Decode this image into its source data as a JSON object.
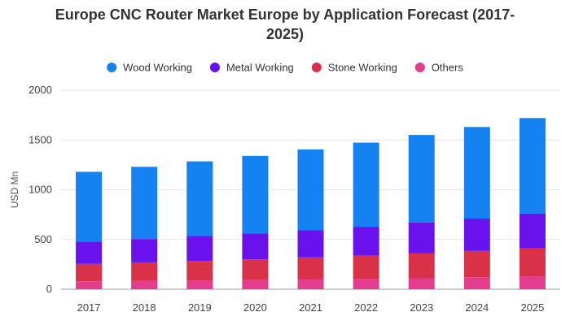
{
  "chart_data": {
    "type": "bar",
    "stacked": true,
    "title": "Europe CNC Router Market Europe by Application Forecast (2017-2025)",
    "xlabel": "",
    "ylabel": "USD Mn",
    "ylim": [
      0,
      2000
    ],
    "yticks": [
      0,
      500,
      1000,
      1500,
      2000
    ],
    "grid": true,
    "legend_position": "top",
    "categories": [
      "2017",
      "2018",
      "2019",
      "2020",
      "2021",
      "2022",
      "2023",
      "2024",
      "2025"
    ],
    "series": [
      {
        "name": "Others",
        "color": "#e23d8e",
        "values": [
          80,
          85,
          90,
          92,
          97,
          103,
          110,
          120,
          130
        ]
      },
      {
        "name": "Stone Working",
        "color": "#d93248",
        "values": [
          175,
          185,
          195,
          208,
          223,
          235,
          250,
          265,
          280
        ]
      },
      {
        "name": "Metal Working",
        "color": "#6a12ee",
        "values": [
          225,
          235,
          250,
          260,
          275,
          290,
          310,
          325,
          350
        ]
      },
      {
        "name": "Wood Working",
        "color": "#1582f2",
        "values": [
          700,
          725,
          750,
          780,
          810,
          845,
          880,
          920,
          960
        ]
      }
    ],
    "legend_order": [
      "Wood Working",
      "Metal Working",
      "Stone Working",
      "Others"
    ]
  }
}
